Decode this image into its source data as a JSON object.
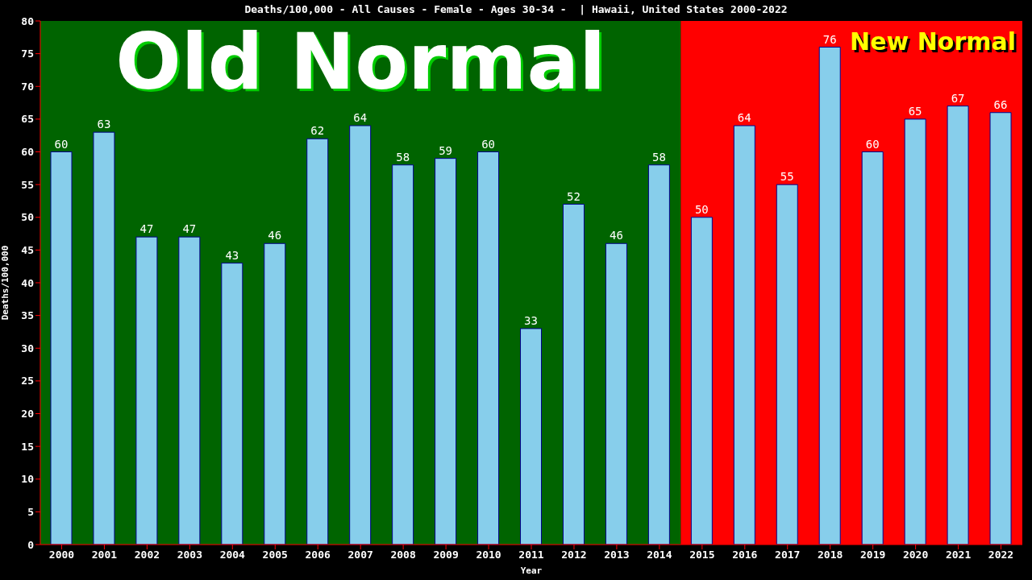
{
  "chart_data": {
    "type": "bar",
    "title": "Deaths/100,000 - All Causes - Female - Ages 30-34 -  | Hawaii, United States 2000-2022",
    "xlabel": "Year",
    "ylabel": "Deaths/100,000",
    "categories": [
      "2000",
      "2001",
      "2002",
      "2003",
      "2004",
      "2005",
      "2006",
      "2007",
      "2008",
      "2009",
      "2010",
      "2011",
      "2012",
      "2013",
      "2014",
      "2015",
      "2016",
      "2017",
      "2018",
      "2019",
      "2020",
      "2021",
      "2022"
    ],
    "values": [
      60,
      63,
      47,
      47,
      43,
      46,
      62,
      64,
      58,
      59,
      60,
      33,
      52,
      46,
      58,
      50,
      64,
      55,
      76,
      60,
      65,
      67,
      66
    ],
    "color": "#87ceeb",
    "data_labels": true,
    "grid": false,
    "legend": false,
    "ylim": [
      0,
      80
    ],
    "yticks": [
      0,
      5,
      10,
      15,
      20,
      25,
      30,
      35,
      40,
      45,
      50,
      55,
      60,
      65,
      70,
      75,
      80
    ],
    "bands": [
      {
        "axis": "x",
        "from": "2000",
        "to": "2014",
        "label": "Old Normal",
        "color": "#006400"
      },
      {
        "axis": "x",
        "from": "2015",
        "to": "2022",
        "label": "New Normal",
        "color": "#ff0000"
      }
    ]
  }
}
